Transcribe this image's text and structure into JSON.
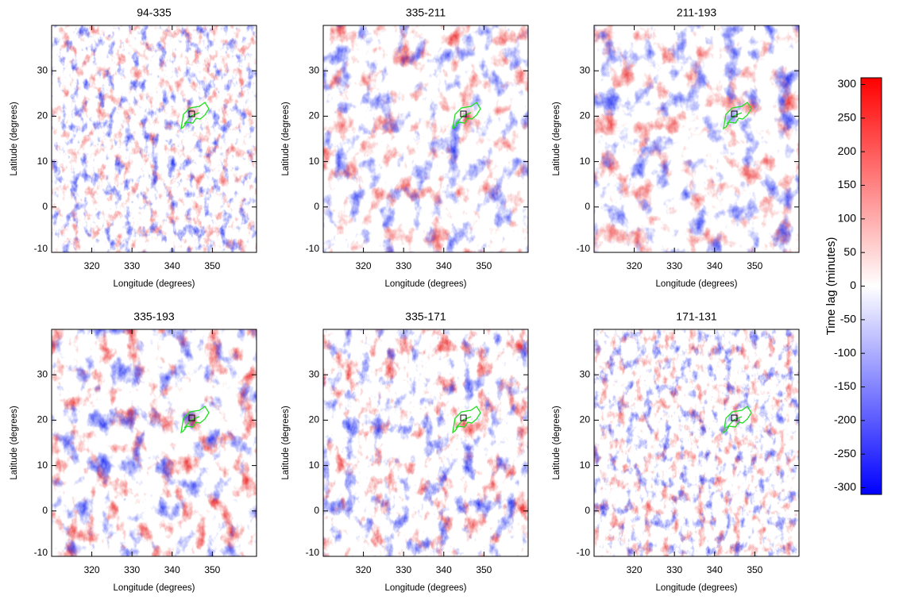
{
  "chart_data": {
    "type": "heatmap",
    "panels": [
      {
        "title": "94-335",
        "xlabel": "Longitude (degrees)",
        "ylabel": "Latitude (degrees)",
        "xlim": [
          310,
          361
        ],
        "ylim": [
          -10,
          40
        ],
        "xticks": [
          320,
          330,
          340,
          350
        ],
        "yticks": [
          -10,
          0,
          10,
          20,
          30
        ]
      },
      {
        "title": "335-211",
        "xlabel": "Longitude (degrees)",
        "ylabel": "Latitude (degrees)",
        "xlim": [
          310,
          361
        ],
        "ylim": [
          -10,
          40
        ],
        "xticks": [
          320,
          330,
          340,
          350
        ],
        "yticks": [
          -10,
          0,
          10,
          20,
          30
        ]
      },
      {
        "title": "211-193",
        "xlabel": "Longitude (degrees)",
        "ylabel": "Latitude (degrees)",
        "xlim": [
          310,
          361
        ],
        "ylim": [
          -10,
          40
        ],
        "xticks": [
          320,
          330,
          340,
          350
        ],
        "yticks": [
          -10,
          0,
          10,
          20,
          30
        ]
      },
      {
        "title": "335-193",
        "xlabel": "Longitude (degrees)",
        "ylabel": "Latitude (degrees)",
        "xlim": [
          310,
          361
        ],
        "ylim": [
          -10,
          40
        ],
        "xticks": [
          320,
          330,
          340,
          350
        ],
        "yticks": [
          -10,
          0,
          10,
          20,
          30
        ]
      },
      {
        "title": "335-171",
        "xlabel": "Longitude (degrees)",
        "ylabel": "Latitude (degrees)",
        "xlim": [
          310,
          361
        ],
        "ylim": [
          -10,
          40
        ],
        "xticks": [
          320,
          330,
          340,
          350
        ],
        "yticks": [
          -10,
          0,
          10,
          20,
          30
        ]
      },
      {
        "title": "171-131",
        "xlabel": "Longitude (degrees)",
        "ylabel": "Latitude (degrees)",
        "xlim": [
          310,
          361
        ],
        "ylim": [
          -10,
          40
        ],
        "xticks": [
          320,
          330,
          340,
          350
        ],
        "yticks": [
          -10,
          0,
          10,
          20,
          30
        ]
      }
    ],
    "colorbar": {
      "label": "Time lag (minutes)",
      "lim": [
        -310,
        310
      ],
      "ticks": [
        -300,
        -250,
        -200,
        -150,
        -100,
        -50,
        0,
        50,
        100,
        150,
        200,
        250,
        300
      ]
    }
  }
}
